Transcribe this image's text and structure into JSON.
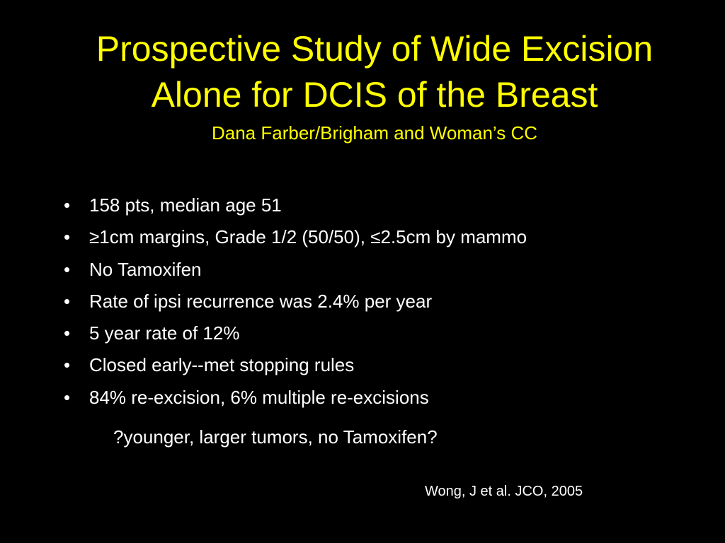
{
  "slide": {
    "title": [
      "Prospective Study of Wide Excision",
      "Alone for DCIS of the Breast"
    ],
    "subtitle": "Dana Farber/Brigham and Woman’s CC",
    "bullets": [
      "158 pts, median age 51",
      "≥1cm margins, Grade 1/2 (50/50), ≤2.5cm by mammo",
      "No Tamoxifen",
      "Rate of ipsi recurrence was 2.4% per year",
      "5 year rate of 12%",
      "Closed early--met stopping rules",
      "84% re-excision, 6% multiple re-excisions"
    ],
    "question": "?younger, larger tumors, no Tamoxifen?",
    "citation": "Wong, J et al. JCO, 2005"
  }
}
